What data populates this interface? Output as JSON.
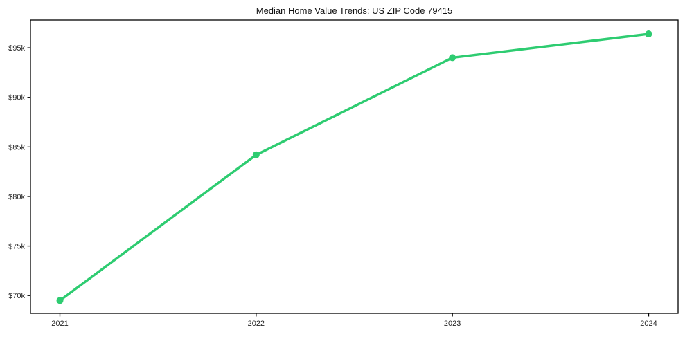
{
  "chart_data": {
    "type": "line",
    "title": "Median Home Value Trends: US ZIP Code 79415",
    "series_name": "Median Home Value",
    "x": [
      2021,
      2022,
      2023,
      2024
    ],
    "values": [
      69500,
      84200,
      94000,
      96400
    ],
    "x_tick_labels": [
      "2021",
      "2022",
      "2023",
      "2024"
    ],
    "y_ticks": [
      70000,
      75000,
      80000,
      85000,
      90000,
      95000
    ],
    "y_tick_labels": [
      "$70k",
      "$75k",
      "$80k",
      "$85k",
      "$90k",
      "$95k"
    ],
    "xlim": [
      2020.85,
      2024.15
    ],
    "ylim": [
      68200,
      97800
    ],
    "grid": false,
    "legend": "none",
    "line_color": "#2ecc71",
    "marker_color": "#2ecc71",
    "axis_color": "#000000",
    "tick_label_color": "#262626",
    "title_color": "#111111"
  }
}
